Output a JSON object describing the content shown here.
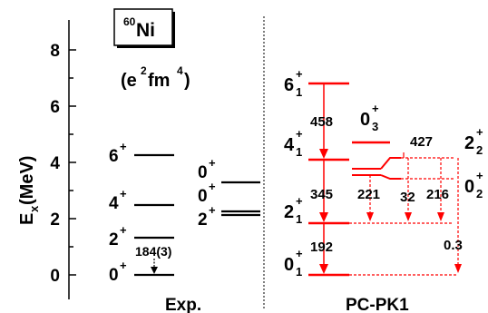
{
  "nucleus": {
    "mass": "60",
    "symbol": "Ni"
  },
  "units": {
    "base": "(e",
    "sup1": "2",
    "mid": "fm",
    "sup2": "4",
    "close": ")"
  },
  "axis": {
    "label": "E",
    "label_sub": "x",
    "label_unit": " (MeV)",
    "ticks": [
      "0",
      "2",
      "4",
      "6",
      "8"
    ]
  },
  "exp": {
    "title": "Exp.",
    "levels": [
      {
        "spin": "0",
        "parity": "+",
        "energy_mev": 0.0
      },
      {
        "spin": "2",
        "parity": "+",
        "energy_mev": 1.33
      },
      {
        "spin": "4",
        "parity": "+",
        "energy_mev": 2.51
      },
      {
        "spin": "6",
        "parity": "+",
        "energy_mev": 4.27
      },
      {
        "spin": "2",
        "parity": "+",
        "energy_mev": 2.16
      },
      {
        "spin": "0",
        "parity": "+",
        "energy_mev": 2.29
      },
      {
        "spin": "0",
        "parity": "+",
        "energy_mev": 3.32
      }
    ],
    "transitions": [
      {
        "value": "184(3)",
        "from": "2+",
        "to": "0+"
      }
    ]
  },
  "theory": {
    "title": "PC-PK1",
    "levels": [
      {
        "label": "0",
        "parity": "+",
        "sub": "1",
        "energy_mev": 0.0
      },
      {
        "label": "2",
        "parity": "+",
        "sub": "1",
        "energy_mev": 1.83
      },
      {
        "label": "4",
        "parity": "+",
        "sub": "1",
        "energy_mev": 4.1
      },
      {
        "label": "6",
        "parity": "+",
        "sub": "1",
        "energy_mev": 6.8
      },
      {
        "label": "0",
        "parity": "+",
        "sub": "3",
        "energy_mev": 4.7
      },
      {
        "label": "2",
        "parity": "+",
        "sub": "2",
        "energy_mev": 4.2
      },
      {
        "label": "0",
        "parity": "+",
        "sub": "2",
        "energy_mev": 3.5
      }
    ],
    "transitions": [
      {
        "value": "458",
        "from": "6+1",
        "to": "4+1"
      },
      {
        "value": "345",
        "from": "4+1",
        "to": "2+1"
      },
      {
        "value": "192",
        "from": "2+1",
        "to": "0+1"
      },
      {
        "value": "221",
        "from": "0+2",
        "to": "2+1"
      },
      {
        "value": "427",
        "from": "2+2",
        "to": "4+1"
      },
      {
        "value": "32",
        "from": "2+2",
        "to": "2+1"
      },
      {
        "value": "216",
        "from": "0+2",
        "to": "2+1"
      },
      {
        "value": "0.3",
        "from": "2+2",
        "to": "0+1"
      }
    ]
  },
  "colors": {
    "theory": "#ff0000",
    "exp": "#000000"
  }
}
